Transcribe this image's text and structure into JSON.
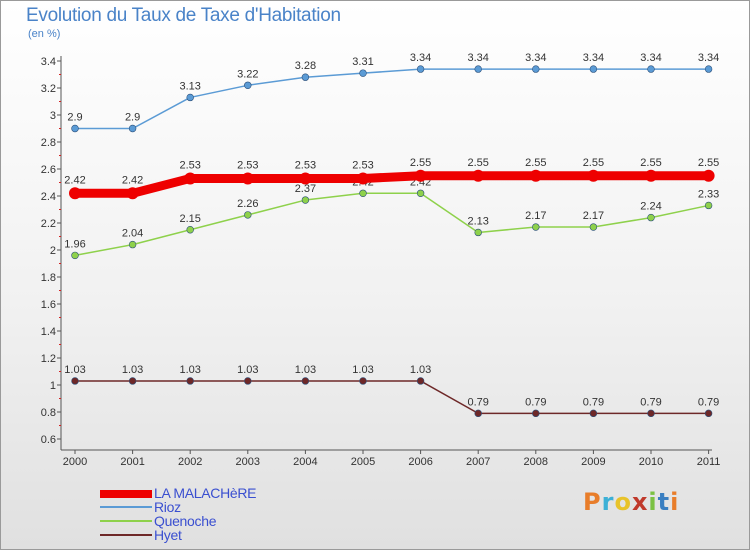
{
  "header": {
    "title": "Evolution du Taux de Taxe d'Habitation",
    "subtitle": "(en %)"
  },
  "legend": [
    {
      "label": "LA MALACHèRE",
      "color": "#ee0000"
    },
    {
      "label": "Rioz",
      "color": "#5b9bd5"
    },
    {
      "label": "Quenoche",
      "color": "#8ed14b"
    },
    {
      "label": "Hyet",
      "color": "#6e2828"
    }
  ],
  "brand": {
    "text": "Proxiti",
    "colors": [
      "#e87d2a",
      "#3cb0d6",
      "#e8c32a",
      "#c0392b",
      "#7bc142",
      "#3a7fc1",
      "#e87d2a"
    ]
  },
  "chart_data": {
    "type": "line",
    "categories": [
      "2000",
      "2001",
      "2002",
      "2003",
      "2004",
      "2005",
      "2006",
      "2007",
      "2008",
      "2009",
      "2010",
      "2011"
    ],
    "ylim": [
      0.6,
      3.4
    ],
    "yticks": [
      "3.4",
      "3.2",
      "3",
      "2.8",
      "2.6",
      "2.4",
      "2.2",
      "2",
      "1.8",
      "1.6",
      "1.4",
      "1.2",
      "1",
      "0.8",
      "0.6"
    ],
    "grid": false,
    "legend_position": "bottom-left",
    "series": [
      {
        "name": "Hyet",
        "color": "#6e2828",
        "values": [
          1.03,
          1.03,
          1.03,
          1.03,
          1.03,
          1.03,
          1.03,
          0.79,
          0.79,
          0.79,
          0.79,
          0.79
        ],
        "labels": [
          "1.03",
          "1.03",
          "1.03",
          "1.03",
          "1.03",
          "1.03",
          "1.03",
          "0.79",
          "0.79",
          "0.79",
          "0.79",
          "0.79"
        ]
      },
      {
        "name": "Quenoche",
        "color": "#8ed14b",
        "values": [
          1.96,
          2.04,
          2.15,
          2.26,
          2.37,
          2.42,
          2.42,
          2.13,
          2.17,
          2.17,
          2.24,
          2.33
        ],
        "labels": [
          "1.96",
          "2.04",
          "2.15",
          "2.26",
          "2.37",
          "2.42",
          "2.42",
          "2.13",
          "2.17",
          "2.17",
          "2.24",
          "2.33"
        ]
      },
      {
        "name": "Rioz",
        "color": "#5b9bd5",
        "values": [
          2.9,
          2.9,
          3.13,
          3.22,
          3.28,
          3.31,
          3.34,
          3.34,
          3.34,
          3.34,
          3.34,
          3.34
        ],
        "labels": [
          "2.9",
          "2.9",
          "3.13",
          "3.22",
          "3.28",
          "3.31",
          "3.34",
          "3.34",
          "3.34",
          "3.34",
          "3.34",
          "3.34"
        ]
      },
      {
        "name": "LA MALACHèRE",
        "color": "#ee0000",
        "values": [
          2.42,
          2.42,
          2.53,
          2.53,
          2.53,
          2.53,
          2.55,
          2.55,
          2.55,
          2.55,
          2.55,
          2.55
        ],
        "labels": [
          "2.42",
          "2.42",
          "2.53",
          "2.53",
          "2.53",
          "2.53",
          "2.55",
          "2.55",
          "2.55",
          "2.55",
          "2.55",
          "2.55"
        ]
      }
    ]
  }
}
